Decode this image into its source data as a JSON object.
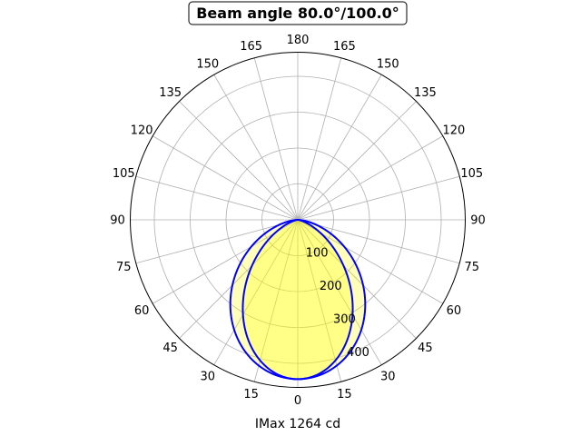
{
  "chart_data": {
    "type": "polar",
    "title": "Beam angle 80.0°/100.0°",
    "xlabel": "IMax 1264 cd",
    "angular_ticks": [
      0,
      15,
      30,
      45,
      60,
      75,
      90,
      105,
      120,
      135,
      150,
      165,
      180
    ],
    "radial_ticks": [
      100,
      200,
      300,
      400
    ],
    "rlim": [
      0,
      467
    ],
    "grid": true,
    "series": [
      {
        "beam_angle_deg": 100.0,
        "peak": 444,
        "exponent": 1.57,
        "line_color": "#0000ff",
        "fill_color": "#ffff00"
      },
      {
        "beam_angle_deg": 80.0,
        "peak": 444,
        "exponent": 2.6,
        "line_color": "#0000ff",
        "fill_color": "#ffff00"
      }
    ]
  }
}
